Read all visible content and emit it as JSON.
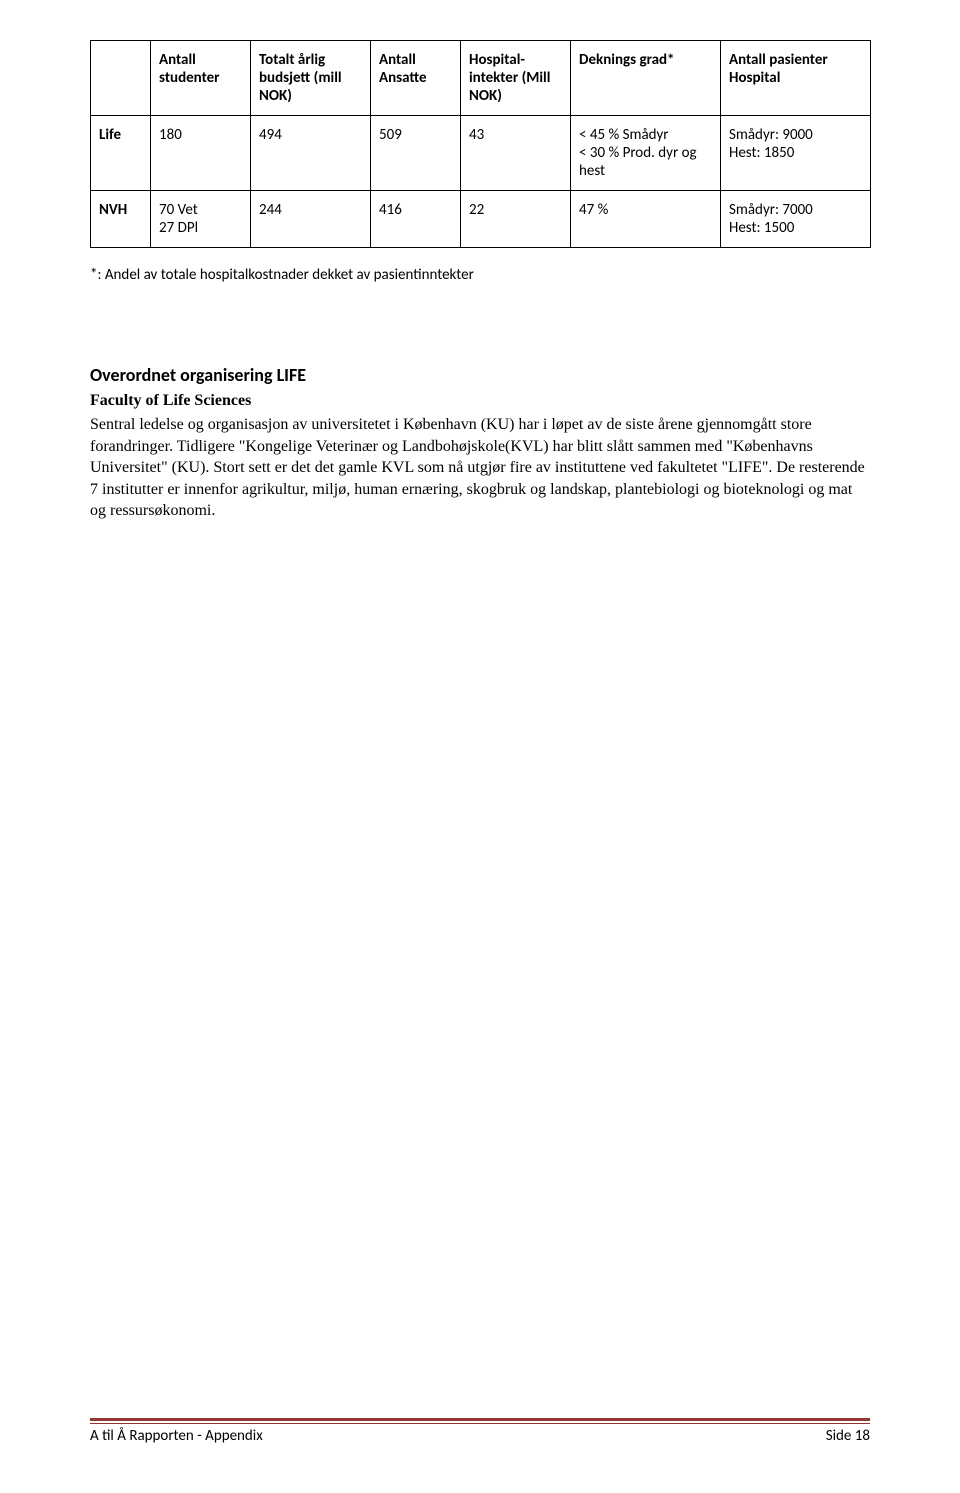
{
  "table": {
    "headers": [
      "",
      "Antall studenter",
      "Totalt årlig budsjett (mill NOK)",
      "Antall Ansatte",
      "Hospital-intekter (Mill NOK)",
      "Deknings grad*",
      "Antall pasienter Hospital"
    ],
    "rows": [
      {
        "label": "Life",
        "c1": "180",
        "c2": "494",
        "c3": "509",
        "c4": "43",
        "c5": "< 45 % Smådyr\n< 30 % Prod. dyr og hest",
        "c6": "Smådyr: 9000\nHest: 1850"
      },
      {
        "label": "NVH",
        "c1": "70 Vet\n27 DPl",
        "c2": "244",
        "c3": "416",
        "c4": "22",
        "c5": "47 %",
        "c6": "Smådyr: 7000\nHest: 1500"
      }
    ]
  },
  "footnote": "*: Andel av totale hospitalkostnader dekket av pasientinntekter",
  "section_heading": "Overordnet organisering LIFE",
  "sub_heading": "Faculty of Life Sciences",
  "body_text": "Sentral ledelse og organisasjon av universitetet i København (KU) har i løpet av de siste årene gjennomgått store forandringer. Tidligere \"Kongelige Veterinær og Landbohøjskole(KVL) har blitt slått sammen med \"Københavns Universitet\" (KU). Stort sett er det det gamle KVL som nå utgjør fire av instituttene ved fakultetet \"LIFE\". De resterende 7 institutter er innenfor agrikultur, miljø, human ernæring, skogbruk og landskap, plantebiologi og bioteknologi og mat og ressursøkonomi.",
  "footer": {
    "left": "A til Å Rapporten - Appendix",
    "right": "Side 18"
  },
  "colors": {
    "footer_rule": "#943634"
  }
}
